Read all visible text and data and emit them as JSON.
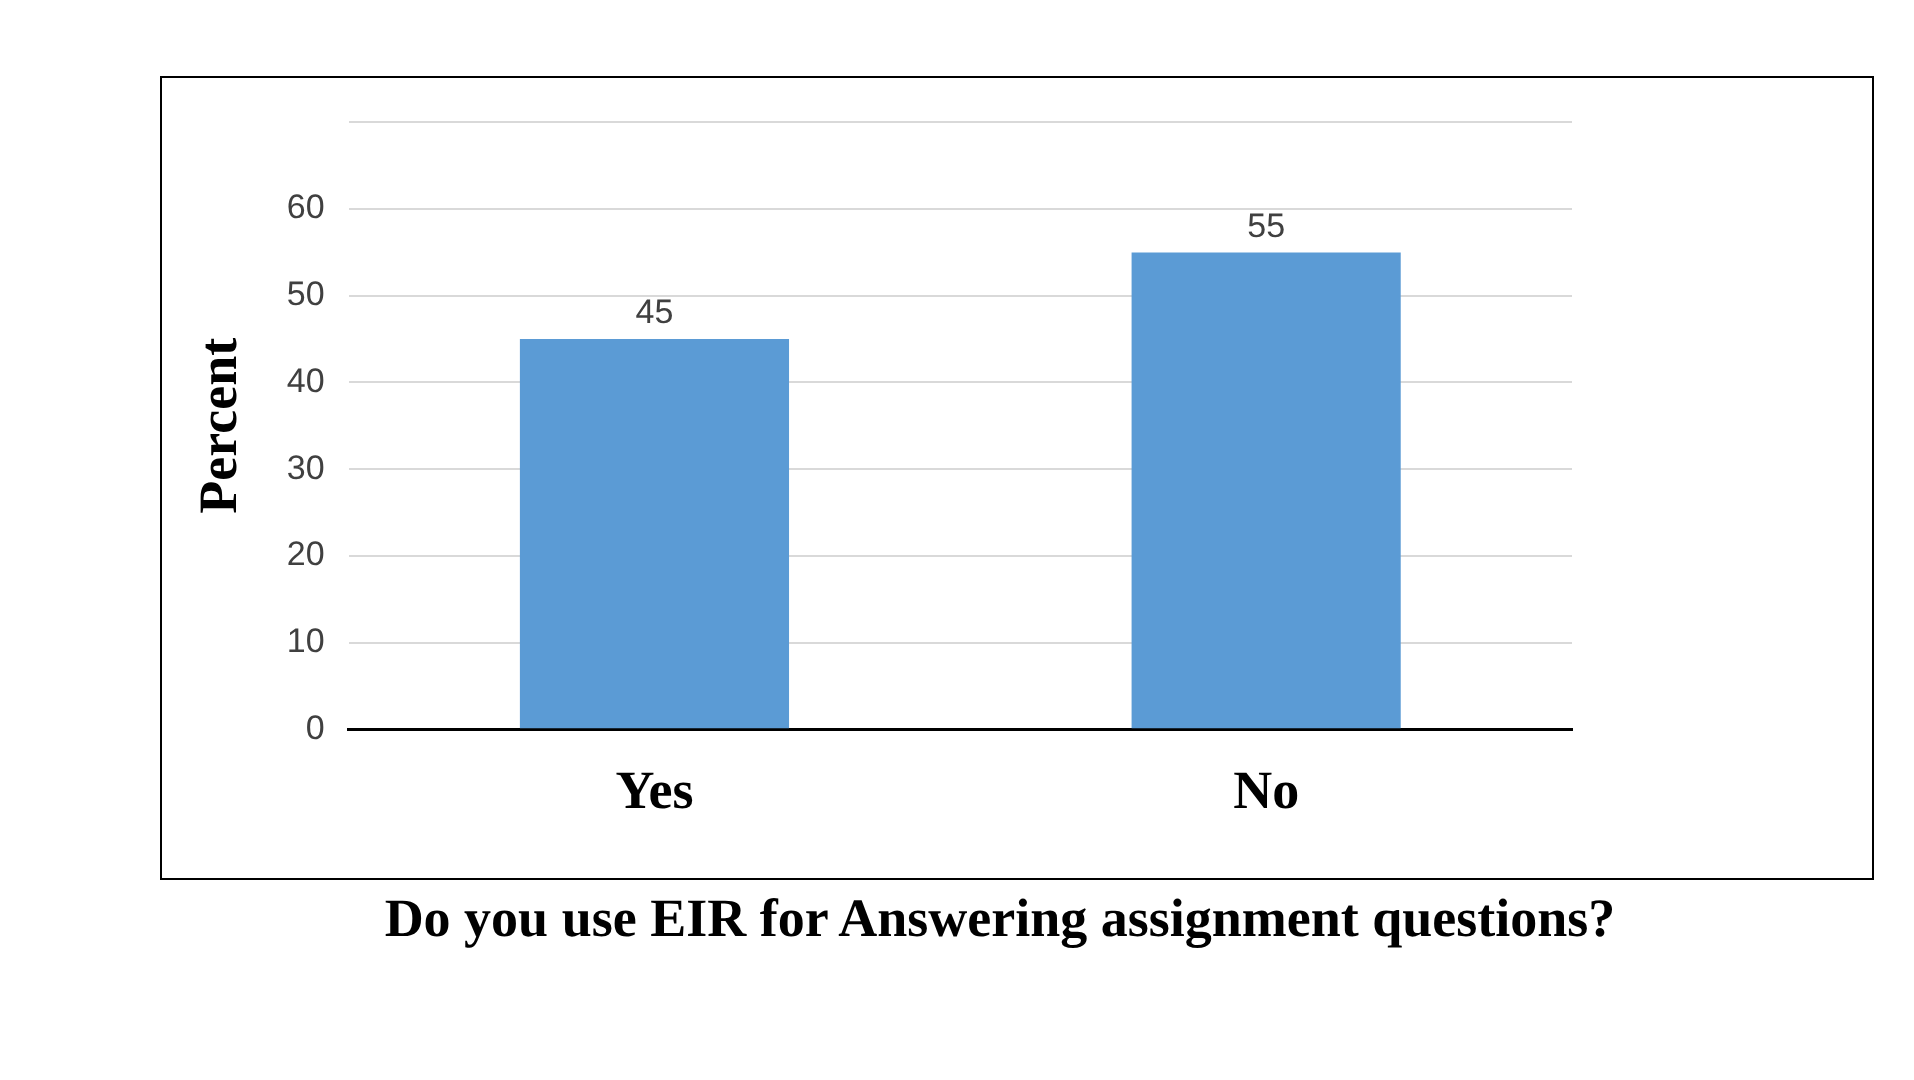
{
  "chart_data": {
    "type": "bar",
    "xlabel": "Do you use EIR for Answering assignment questions?",
    "ylabel": "Percent",
    "categories": [
      "Yes",
      "No"
    ],
    "values": [
      45,
      55
    ],
    "color": "#5b9bd5",
    "ylim": [
      0,
      70
    ],
    "yticks": [
      0,
      10,
      20,
      30,
      40,
      50,
      60,
      {
        "value": 70,
        "label": null
      }
    ],
    "grid": "y",
    "data_labels": true,
    "legend": false
  }
}
